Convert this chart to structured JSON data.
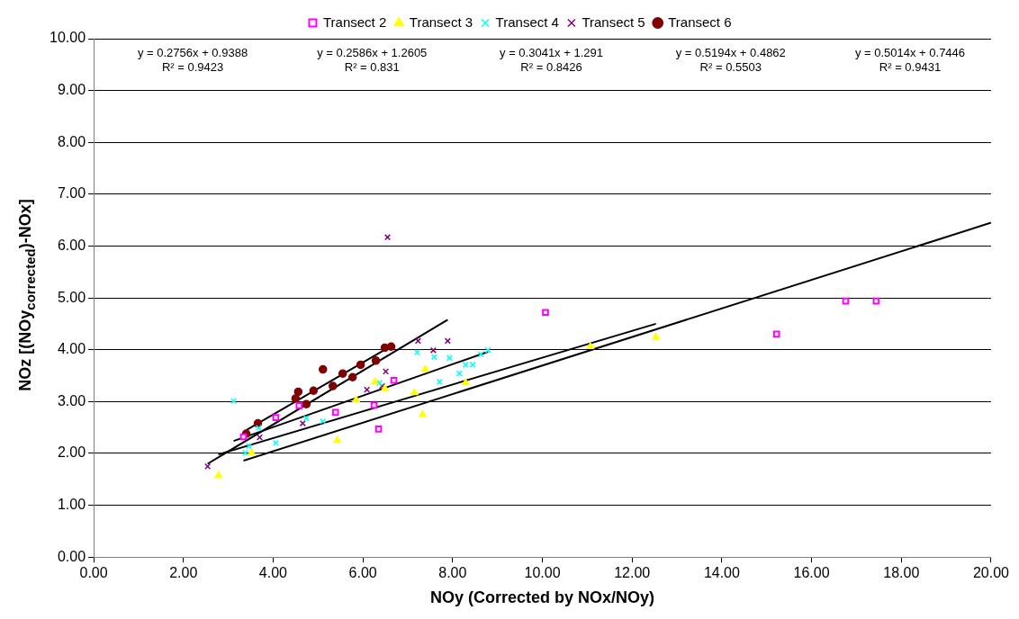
{
  "chart_data": {
    "type": "scatter",
    "xlabel": "NOy (Corrected by NOx/NOy)",
    "ylabel": "NOz [(NOy$_{corrected}$)-NOx]",
    "xlim": [
      0,
      20
    ],
    "ylim": [
      0,
      10
    ],
    "xticks": [
      {
        "value": 0,
        "label": "0.00"
      },
      {
        "value": 2,
        "label": "2.00"
      },
      {
        "value": 4,
        "label": "4.00"
      },
      {
        "value": 6,
        "label": "6.00"
      },
      {
        "value": 8,
        "label": "8.00"
      },
      {
        "value": 10,
        "label": "10.00"
      },
      {
        "value": 12,
        "label": "12.00"
      },
      {
        "value": 14,
        "label": "14.00"
      },
      {
        "value": 16,
        "label": "16.00"
      },
      {
        "value": 18,
        "label": "18.00"
      },
      {
        "value": 20,
        "label": "20.00"
      }
    ],
    "yticks": [
      {
        "value": 0,
        "label": "0.00"
      },
      {
        "value": 1,
        "label": "1.00"
      },
      {
        "value": 2,
        "label": "2.00"
      },
      {
        "value": 3,
        "label": "3.00"
      },
      {
        "value": 4,
        "label": "4.00"
      },
      {
        "value": 5,
        "label": "5.00"
      },
      {
        "value": 6,
        "label": "6.00"
      },
      {
        "value": 7,
        "label": "7.00"
      },
      {
        "value": 8,
        "label": "8.00"
      },
      {
        "value": 9,
        "label": "9.00"
      },
      {
        "value": 10,
        "label": "10.00"
      }
    ],
    "grid": "y",
    "legend": "top",
    "annotations": [
      "y = 0.2756x + 0.9388\nR² = 0.9423",
      "y = 0.2586x + 1.2605\nR² = 0.831",
      "y = 0.3041x + 1.291\nR² = 0.8426",
      "y = 0.5194x + 0.4862\nR² = 0.5503",
      "y = 0.5014x + 0.7446\nR² = 0.9431"
    ],
    "series": [
      {
        "name": "Transect 2",
        "color": "#ff00ff",
        "marker": "square",
        "x": [
          3.34,
          4.06,
          4.58,
          5.39,
          6.25,
          6.69,
          6.35,
          10.07,
          15.22,
          16.76,
          17.44
        ],
        "values": [
          2.32,
          2.69,
          2.92,
          2.79,
          2.93,
          3.41,
          2.47,
          4.72,
          4.3,
          4.94,
          4.94
        ]
      },
      {
        "name": "Transect 3",
        "color": "#ffff00",
        "marker": "triangle",
        "x": [
          2.78,
          3.52,
          5.43,
          5.85,
          6.27,
          6.49,
          7.15,
          7.39,
          7.33,
          8.29,
          11.07,
          12.53
        ],
        "values": [
          1.57,
          2.01,
          2.25,
          3.03,
          3.38,
          3.25,
          3.17,
          3.62,
          2.75,
          3.36,
          4.06,
          4.24
        ]
      },
      {
        "name": "Transect 4",
        "color": "#00ffff",
        "marker": "cross",
        "x": [
          3.12,
          3.38,
          3.46,
          3.68,
          4.06,
          4.74,
          5.11,
          6.37,
          7.21,
          7.59,
          7.93,
          7.71,
          8.15,
          8.29,
          8.45,
          8.63,
          8.79
        ],
        "values": [
          3.01,
          2.01,
          2.14,
          2.49,
          2.2,
          2.68,
          2.62,
          3.36,
          3.95,
          3.86,
          3.84,
          3.38,
          3.54,
          3.71,
          3.71,
          3.91,
          3.99
        ]
      },
      {
        "name": "Transect 5",
        "color": "#800080",
        "marker": "cross",
        "x": [
          2.54,
          3.7,
          4.66,
          6.09,
          6.43,
          6.51,
          7.23,
          7.57,
          7.89,
          6.55
        ],
        "values": [
          1.75,
          2.31,
          2.58,
          3.23,
          3.3,
          3.58,
          4.17,
          3.99,
          4.17,
          6.17
        ]
      },
      {
        "name": "Transect 6",
        "color": "#800000",
        "marker": "circle",
        "x": [
          3.4,
          3.66,
          4.5,
          4.56,
          4.74,
          4.9,
          5.11,
          5.33,
          5.55,
          5.77,
          5.95,
          6.29,
          6.49,
          6.63
        ],
        "values": [
          2.38,
          2.58,
          3.06,
          3.19,
          2.95,
          3.21,
          3.62,
          3.3,
          3.54,
          3.47,
          3.71,
          3.79,
          4.04,
          4.06
        ]
      },
      {
        "type": "line",
        "color": "#000000",
        "marker": "none",
        "x": [
          3.34,
          20
        ],
        "values": [
          1.86,
          6.45
        ]
      },
      {
        "type": "line",
        "color": "#000000",
        "marker": "none",
        "x": [
          2.78,
          12.53
        ],
        "values": [
          1.98,
          4.5
        ]
      },
      {
        "type": "line",
        "color": "#000000",
        "marker": "none",
        "x": [
          3.12,
          8.79
        ],
        "values": [
          2.24,
          3.96
        ]
      },
      {
        "type": "line",
        "color": "#000000",
        "marker": "none",
        "x": [
          2.54,
          7.89
        ],
        "values": [
          1.8,
          4.58
        ]
      },
      {
        "type": "line",
        "color": "#000000",
        "marker": "none",
        "x": [
          3.4,
          6.63
        ],
        "values": [
          2.45,
          4.07
        ]
      }
    ]
  }
}
